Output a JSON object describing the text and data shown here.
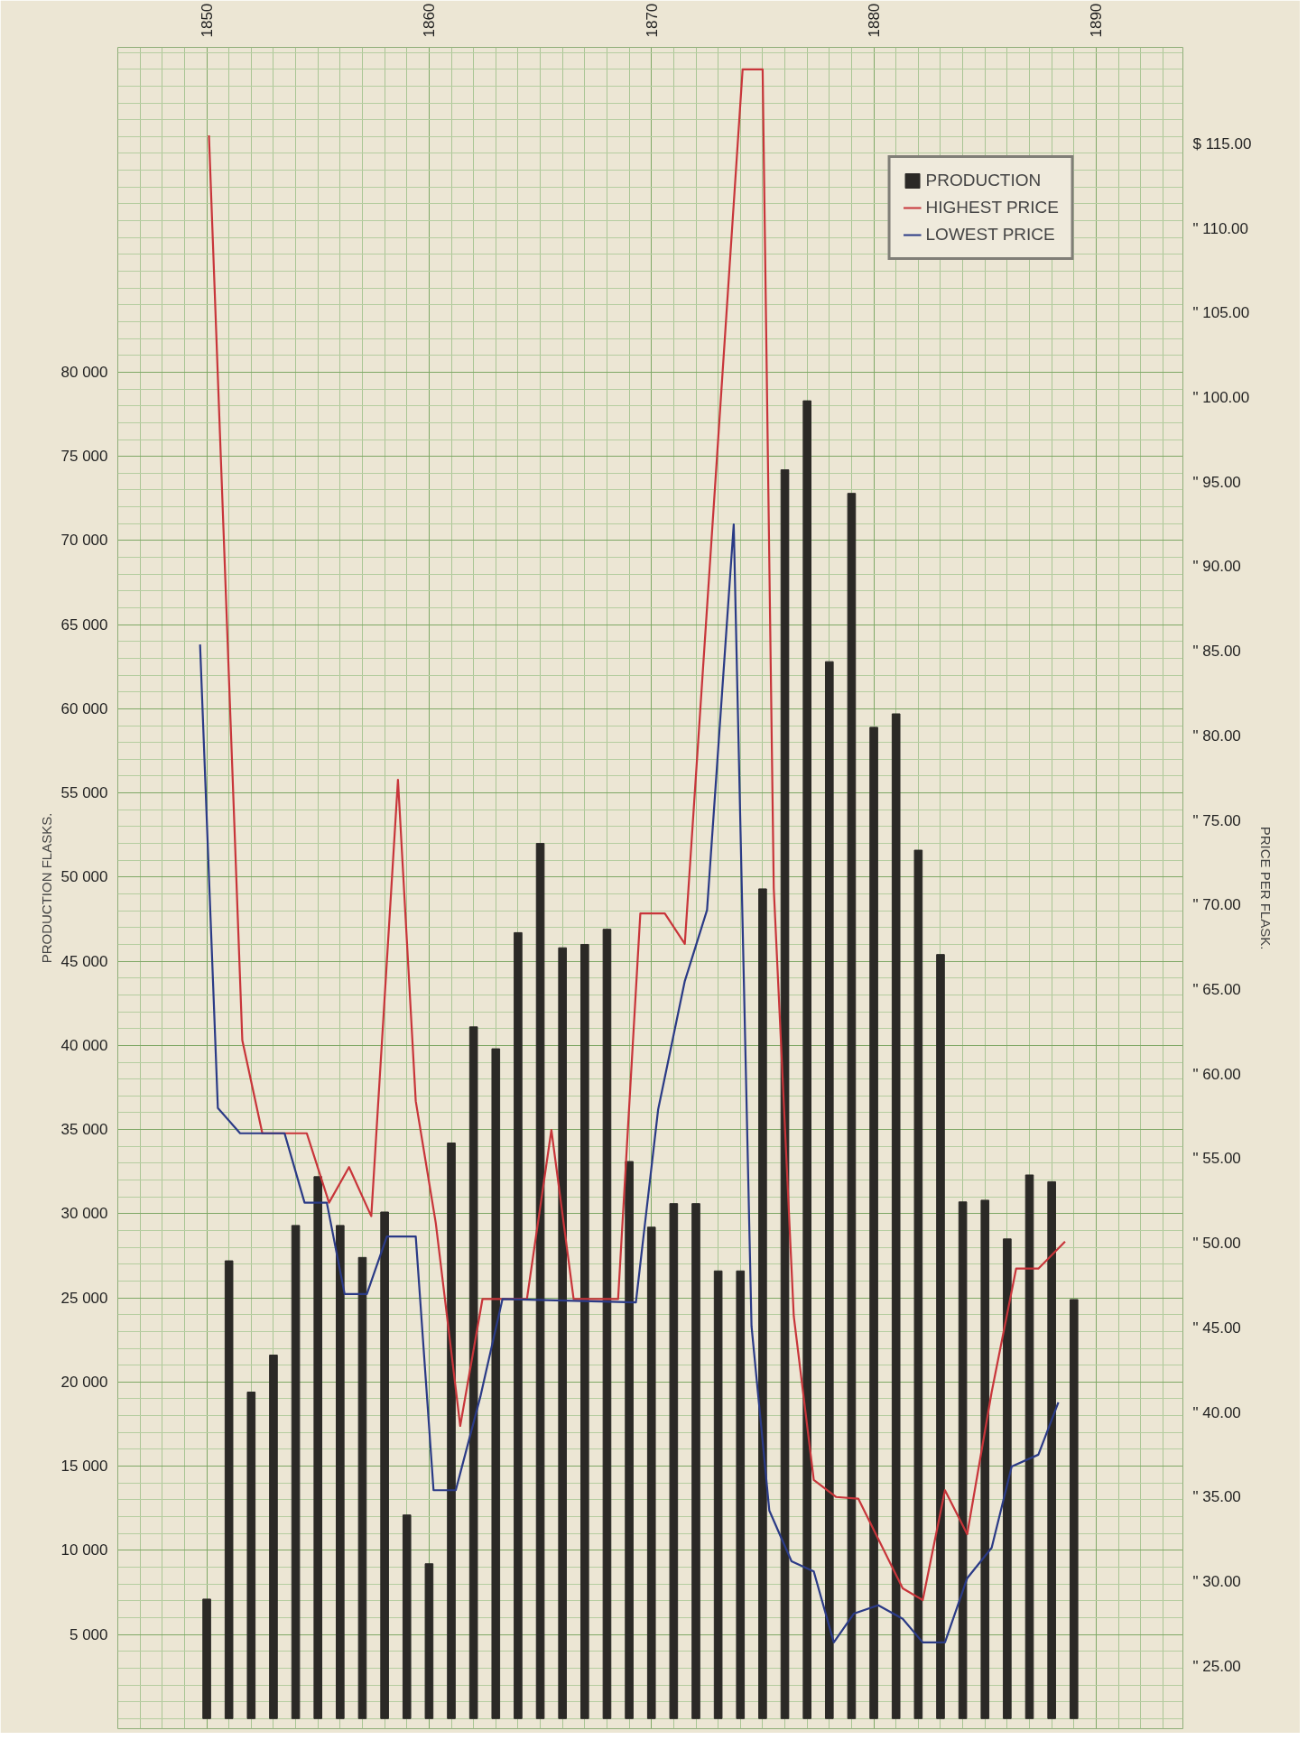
{
  "chart_data": {
    "type": "bar",
    "ylabel": "PRODUCTION FLASKS.",
    "y2label": "PRICE PER FLASK.",
    "xlim": [
      1846.0,
      1893.9
    ],
    "xticks": [
      1850,
      1860,
      1870,
      1880,
      1890
    ],
    "ylim": [
      -600,
      99300
    ],
    "yticks": [
      {
        "value": 5000,
        "label": "5 000"
      },
      {
        "value": 10000,
        "label": "10 000"
      },
      {
        "value": 15000,
        "label": "15 000"
      },
      {
        "value": 20000,
        "label": "20 000"
      },
      {
        "value": 25000,
        "label": "25 000"
      },
      {
        "value": 30000,
        "label": "30 000"
      },
      {
        "value": 35000,
        "label": "35 000"
      },
      {
        "value": 40000,
        "label": "40 000"
      },
      {
        "value": 45000,
        "label": "45 000"
      },
      {
        "value": 50000,
        "label": "50 000"
      },
      {
        "value": 55000,
        "label": "55 000"
      },
      {
        "value": 60000,
        "label": "60 000"
      },
      {
        "value": 65000,
        "label": "65 000"
      },
      {
        "value": 70000,
        "label": "70 000"
      },
      {
        "value": 75000,
        "label": "75 000"
      },
      {
        "value": 80000,
        "label": "80 000"
      }
    ],
    "y2lim": [
      21.3,
      120.7
    ],
    "y2ticks": [
      {
        "value": 25,
        "label": "\" 25.00"
      },
      {
        "value": 30,
        "label": "\" 30.00"
      },
      {
        "value": 35,
        "label": "\" 35.00"
      },
      {
        "value": 40,
        "label": "\" 40.00"
      },
      {
        "value": 45,
        "label": "\" 45.00"
      },
      {
        "value": 50,
        "label": "\" 50.00"
      },
      {
        "value": 55,
        "label": "\" 55.00"
      },
      {
        "value": 60,
        "label": "\" 60.00"
      },
      {
        "value": 65,
        "label": "\" 65.00"
      },
      {
        "value": 70,
        "label": "\" 70.00"
      },
      {
        "value": 75,
        "label": "\" 75.00"
      },
      {
        "value": 80,
        "label": "\" 80.00"
      },
      {
        "value": 85,
        "label": "\" 85.00"
      },
      {
        "value": 90,
        "label": "\" 90.00"
      },
      {
        "value": 95,
        "label": "\" 95.00"
      },
      {
        "value": 100,
        "label": "\" 100.00"
      },
      {
        "value": 105,
        "label": "\" 105.00"
      },
      {
        "value": 110,
        "label": "\" 110.00"
      },
      {
        "value": 115,
        "label": "$ 115.00"
      }
    ],
    "grid": true,
    "legend": "top right",
    "x": [
      1850,
      1851,
      1852,
      1853,
      1854,
      1855,
      1856,
      1857,
      1858,
      1859,
      1860,
      1861,
      1862,
      1863,
      1864,
      1865,
      1866,
      1867,
      1868,
      1869,
      1870,
      1871,
      1872,
      1873,
      1874,
      1875,
      1876,
      1877,
      1878,
      1879,
      1880,
      1881,
      1882,
      1883,
      1884,
      1885,
      1886,
      1887,
      1888,
      1889
    ],
    "series": [
      {
        "name": "PRODUCTION",
        "color": "#2b2926",
        "values": [
          7100,
          27200,
          19400,
          21600,
          29300,
          32200,
          29300,
          27400,
          30100,
          12100,
          9200,
          34200,
          41100,
          39800,
          46700,
          52000,
          45800,
          46000,
          46900,
          33100,
          29200,
          30600,
          30600,
          26600,
          26600,
          49300,
          74200,
          78300,
          62800,
          72800,
          58900,
          59700,
          51600,
          45400,
          30700,
          30800,
          28500,
          32300,
          31900,
          24900
        ]
      },
      {
        "name": "HIGHEST PRICE",
        "type": "line",
        "axis": "y2",
        "color": "#c8353a",
        "x": [
          1850.1,
          1851.6,
          1852.5,
          1854.5,
          1855.5,
          1856.4,
          1857.4,
          1858.6,
          1859.4,
          1860.3,
          1861.4,
          1862.4,
          1864.4,
          1865.5,
          1866.5,
          1868.5,
          1869.5,
          1870.6,
          1871.5,
          1874.1,
          1875.0,
          1875.5,
          1876.4,
          1877.3,
          1878.3,
          1879.3,
          1881.3,
          1882.2,
          1883.2,
          1884.2,
          1885.3,
          1886.4,
          1887.4,
          1888.6
        ],
        "values": [
          115.5,
          62.0,
          56.5,
          56.5,
          52.4,
          54.5,
          51.6,
          77.4,
          58.4,
          51.2,
          39.2,
          46.7,
          46.7,
          56.7,
          46.7,
          46.7,
          69.5,
          69.5,
          67.7,
          119.4,
          119.4,
          71.0,
          45.7,
          36.0,
          35.0,
          34.9,
          29.6,
          28.9,
          35.4,
          32.8,
          41.2,
          48.5,
          48.5,
          50.1
        ]
      },
      {
        "name": "LOWEST PRICE",
        "type": "line",
        "axis": "y2",
        "color": "#2a3a86",
        "x": [
          1849.7,
          1850.5,
          1851.5,
          1853.5,
          1854.4,
          1855.4,
          1856.2,
          1857.2,
          1858.1,
          1859.4,
          1860.2,
          1861.2,
          1862.3,
          1863.3,
          1869.3,
          1870.3,
          1871.5,
          1872.5,
          1873.7,
          1874.5,
          1875.3,
          1876.3,
          1877.3,
          1878.2,
          1879.1,
          1880.2,
          1881.3,
          1882.2,
          1883.2,
          1884.2,
          1885.3,
          1886.2,
          1887.4,
          1888.3
        ],
        "values": [
          85.4,
          58.0,
          56.5,
          56.5,
          52.4,
          52.4,
          47.0,
          47.0,
          50.4,
          50.4,
          35.4,
          35.4,
          40.9,
          46.7,
          46.5,
          57.9,
          65.5,
          69.7,
          92.5,
          45.1,
          34.2,
          31.2,
          30.6,
          26.4,
          28.1,
          28.6,
          27.8,
          26.4,
          26.4,
          30.2,
          32.0,
          36.8,
          37.5,
          40.6
        ]
      }
    ]
  }
}
